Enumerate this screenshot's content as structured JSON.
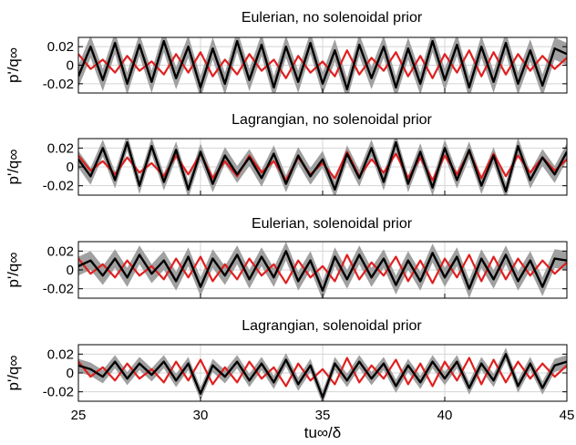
{
  "chart_data": [
    {
      "type": "line",
      "title": "Eulerian, no solenoidal prior",
      "ylabel": "p'/q∞",
      "xlim": [
        25,
        45
      ],
      "ylim": [
        -0.03,
        0.03
      ],
      "yticks": [
        -0.02,
        0,
        0.02
      ],
      "ytick_labels": [
        "-0.02",
        "0",
        "0.02"
      ],
      "grid": true,
      "series": [
        {
          "role": "reference",
          "color": "#e02020",
          "x": [
            25,
            25.5,
            26,
            26.5,
            27,
            27.5,
            28,
            28.5,
            29,
            29.5,
            30,
            30.5,
            31,
            31.5,
            32,
            32.5,
            33,
            33.5,
            34,
            34.5,
            35,
            35.5,
            36,
            36.5,
            37,
            37.5,
            38,
            38.5,
            39,
            39.5,
            40,
            40.5,
            41,
            41.5,
            42,
            42.5,
            43,
            43.5,
            44,
            44.5,
            45
          ],
          "y": [
            0.012,
            -0.004,
            0.006,
            -0.008,
            0.01,
            -0.006,
            0.004,
            -0.01,
            0.012,
            -0.008,
            0.014,
            -0.012,
            0.006,
            -0.01,
            0.012,
            -0.006,
            0.006,
            -0.014,
            0.01,
            -0.008,
            0.004,
            -0.012,
            0.016,
            -0.01,
            0.008,
            -0.006,
            0.014,
            -0.012,
            0.01,
            -0.014,
            0.012,
            -0.008,
            0.016,
            -0.012,
            0.014,
            -0.01,
            0.012,
            -0.006,
            0.01,
            -0.004,
            0.008
          ]
        },
        {
          "role": "estimate",
          "color": "#000000",
          "x": [
            25,
            25.5,
            26,
            26.5,
            27,
            27.5,
            28,
            28.5,
            29,
            29.5,
            30,
            30.5,
            31,
            31.5,
            32,
            32.5,
            33,
            33.5,
            34,
            34.5,
            35,
            35.5,
            36,
            36.5,
            37,
            37.5,
            38,
            38.5,
            39,
            39.5,
            40,
            40.5,
            41,
            41.5,
            42,
            42.5,
            43,
            43.5,
            44,
            44.5,
            45
          ],
          "y": [
            -0.012,
            0.02,
            -0.016,
            0.024,
            -0.02,
            0.022,
            -0.018,
            0.026,
            -0.014,
            0.02,
            -0.024,
            0.018,
            -0.02,
            0.026,
            -0.016,
            0.022,
            -0.024,
            0.02,
            -0.018,
            0.024,
            -0.02,
            0.016,
            -0.026,
            0.022,
            -0.014,
            0.02,
            -0.024,
            0.018,
            -0.02,
            0.026,
            -0.016,
            0.022,
            -0.024,
            0.02,
            -0.018,
            0.024,
            -0.02,
            0.016,
            -0.022,
            0.018,
            0.012
          ],
          "band": 0.012
        }
      ]
    },
    {
      "type": "line",
      "title": "Lagrangian, no solenoidal prior",
      "ylabel": "p'/q∞",
      "xlim": [
        25,
        45
      ],
      "ylim": [
        -0.03,
        0.03
      ],
      "yticks": [
        -0.02,
        0,
        0.02
      ],
      "ytick_labels": [
        "-0.02",
        "0",
        "0.02"
      ],
      "grid": true,
      "series": [
        {
          "role": "reference",
          "color": "#e02020",
          "x": [
            25,
            25.5,
            26,
            26.5,
            27,
            27.5,
            28,
            28.5,
            29,
            29.5,
            30,
            30.5,
            31,
            31.5,
            32,
            32.5,
            33,
            33.5,
            34,
            34.5,
            35,
            35.5,
            36,
            36.5,
            37,
            37.5,
            38,
            38.5,
            39,
            39.5,
            40,
            40.5,
            41,
            41.5,
            42,
            42.5,
            43,
            43.5,
            44,
            44.5,
            45
          ],
          "y": [
            0.012,
            -0.004,
            0.006,
            -0.008,
            0.01,
            -0.006,
            0.004,
            -0.01,
            0.012,
            -0.008,
            0.014,
            -0.012,
            0.006,
            -0.01,
            0.012,
            -0.006,
            0.006,
            -0.014,
            0.01,
            -0.008,
            0.004,
            -0.012,
            0.016,
            -0.01,
            0.008,
            -0.006,
            0.014,
            -0.012,
            0.01,
            -0.014,
            0.012,
            -0.008,
            0.016,
            -0.012,
            0.014,
            -0.01,
            0.012,
            -0.006,
            0.01,
            -0.004,
            0.008
          ]
        },
        {
          "role": "estimate",
          "color": "#000000",
          "x": [
            25,
            25.5,
            26,
            26.5,
            27,
            27.5,
            28,
            28.5,
            29,
            29.5,
            30,
            30.5,
            31,
            31.5,
            32,
            32.5,
            33,
            33.5,
            34,
            34.5,
            35,
            35.5,
            36,
            36.5,
            37,
            37.5,
            38,
            38.5,
            39,
            39.5,
            40,
            40.5,
            41,
            41.5,
            42,
            42.5,
            43,
            43.5,
            44,
            44.5,
            45
          ],
          "y": [
            0.008,
            -0.01,
            0.02,
            -0.014,
            0.026,
            -0.02,
            0.022,
            -0.016,
            0.018,
            -0.024,
            0.016,
            -0.018,
            0.012,
            -0.008,
            0.01,
            -0.012,
            0.014,
            -0.018,
            0.012,
            -0.01,
            0.008,
            -0.024,
            0.014,
            -0.012,
            0.02,
            -0.016,
            0.026,
            -0.018,
            0.016,
            -0.022,
            0.02,
            -0.014,
            0.018,
            -0.02,
            0.012,
            -0.026,
            0.022,
            -0.014,
            0.01,
            -0.008,
            0.016
          ],
          "band": 0.009
        }
      ]
    },
    {
      "type": "line",
      "title": "Eulerian, solenoidal prior",
      "ylabel": "p'/q∞",
      "xlim": [
        25,
        45
      ],
      "ylim": [
        -0.03,
        0.03
      ],
      "yticks": [
        -0.02,
        0,
        0.02
      ],
      "ytick_labels": [
        "-0.02",
        "0",
        "0.02"
      ],
      "grid": true,
      "series": [
        {
          "role": "reference",
          "color": "#e02020",
          "x": [
            25,
            25.5,
            26,
            26.5,
            27,
            27.5,
            28,
            28.5,
            29,
            29.5,
            30,
            30.5,
            31,
            31.5,
            32,
            32.5,
            33,
            33.5,
            34,
            34.5,
            35,
            35.5,
            36,
            36.5,
            37,
            37.5,
            38,
            38.5,
            39,
            39.5,
            40,
            40.5,
            41,
            41.5,
            42,
            42.5,
            43,
            43.5,
            44,
            44.5,
            45
          ],
          "y": [
            0.012,
            -0.004,
            0.006,
            -0.008,
            0.01,
            -0.006,
            0.004,
            -0.01,
            0.012,
            -0.008,
            0.014,
            -0.012,
            0.006,
            -0.01,
            0.012,
            -0.006,
            0.006,
            -0.014,
            0.01,
            -0.008,
            0.004,
            -0.012,
            0.016,
            -0.01,
            0.008,
            -0.006,
            0.014,
            -0.012,
            0.01,
            -0.014,
            0.012,
            -0.008,
            0.016,
            -0.012,
            0.014,
            -0.01,
            0.012,
            -0.006,
            0.01,
            -0.004,
            0.008
          ]
        },
        {
          "role": "estimate",
          "color": "#000000",
          "x": [
            25,
            25.5,
            26,
            26.5,
            27,
            27.5,
            28,
            28.5,
            29,
            29.5,
            30,
            30.5,
            31,
            31.5,
            32,
            32.5,
            33,
            33.5,
            34,
            34.5,
            35,
            35.5,
            36,
            36.5,
            37,
            37.5,
            38,
            38.5,
            39,
            39.5,
            40,
            40.5,
            41,
            41.5,
            42,
            42.5,
            43,
            43.5,
            44,
            44.5,
            45
          ],
          "y": [
            0.004,
            0.01,
            -0.006,
            0.012,
            -0.008,
            0.016,
            -0.004,
            0.01,
            -0.012,
            0.014,
            -0.018,
            0.012,
            -0.006,
            0.016,
            -0.01,
            0.014,
            -0.008,
            0.02,
            -0.012,
            0.01,
            -0.022,
            0.014,
            -0.01,
            0.016,
            -0.008,
            0.012,
            -0.016,
            0.01,
            -0.012,
            0.018,
            -0.008,
            0.014,
            -0.02,
            0.012,
            -0.01,
            0.016,
            -0.012,
            0.01,
            -0.018,
            0.012,
            0.01
          ],
          "band": 0.01
        }
      ]
    },
    {
      "type": "line",
      "title": "Lagrangian, solenoidal prior",
      "ylabel": "p'/q∞",
      "xlabel": "tu∞/δ",
      "xlim": [
        25,
        45
      ],
      "ylim": [
        -0.03,
        0.03
      ],
      "xticks": [
        25,
        30,
        35,
        40,
        45
      ],
      "xtick_labels": [
        "25",
        "30",
        "35",
        "40",
        "45"
      ],
      "yticks": [
        -0.02,
        0,
        0.02
      ],
      "ytick_labels": [
        "-0.02",
        "0",
        "0.02"
      ],
      "grid": true,
      "series": [
        {
          "role": "reference",
          "color": "#e02020",
          "x": [
            25,
            25.5,
            26,
            26.5,
            27,
            27.5,
            28,
            28.5,
            29,
            29.5,
            30,
            30.5,
            31,
            31.5,
            32,
            32.5,
            33,
            33.5,
            34,
            34.5,
            35,
            35.5,
            36,
            36.5,
            37,
            37.5,
            38,
            38.5,
            39,
            39.5,
            40,
            40.5,
            41,
            41.5,
            42,
            42.5,
            43,
            43.5,
            44,
            44.5,
            45
          ],
          "y": [
            0.012,
            -0.004,
            0.006,
            -0.008,
            0.01,
            -0.006,
            0.004,
            -0.01,
            0.012,
            -0.008,
            0.014,
            -0.012,
            0.006,
            -0.01,
            0.012,
            -0.006,
            0.006,
            -0.014,
            0.01,
            -0.008,
            0.004,
            -0.012,
            0.016,
            -0.01,
            0.008,
            -0.006,
            0.014,
            -0.012,
            0.01,
            -0.014,
            0.012,
            -0.008,
            0.016,
            -0.012,
            0.014,
            -0.01,
            0.012,
            -0.006,
            0.01,
            -0.004,
            0.008
          ]
        },
        {
          "role": "estimate",
          "color": "#000000",
          "x": [
            25,
            25.5,
            26,
            26.5,
            27,
            27.5,
            28,
            28.5,
            29,
            29.5,
            30,
            30.5,
            31,
            31.5,
            32,
            32.5,
            33,
            33.5,
            34,
            34.5,
            35,
            35.5,
            36,
            36.5,
            37,
            37.5,
            38,
            38.5,
            39,
            39.5,
            40,
            40.5,
            41,
            41.5,
            42,
            42.5,
            43,
            43.5,
            44,
            44.5,
            45
          ],
          "y": [
            0.008,
            0.004,
            -0.004,
            0.012,
            -0.006,
            0.01,
            -0.002,
            0.012,
            -0.008,
            0.01,
            -0.022,
            0.008,
            -0.004,
            0.012,
            -0.008,
            0.01,
            -0.01,
            0.014,
            -0.012,
            0.008,
            -0.026,
            0.01,
            -0.008,
            0.012,
            -0.006,
            0.01,
            -0.014,
            0.008,
            -0.01,
            0.012,
            -0.006,
            0.012,
            -0.016,
            0.01,
            -0.008,
            0.02,
            -0.014,
            0.01,
            -0.016,
            0.008,
            0.012
          ],
          "band": 0.007
        }
      ]
    }
  ]
}
